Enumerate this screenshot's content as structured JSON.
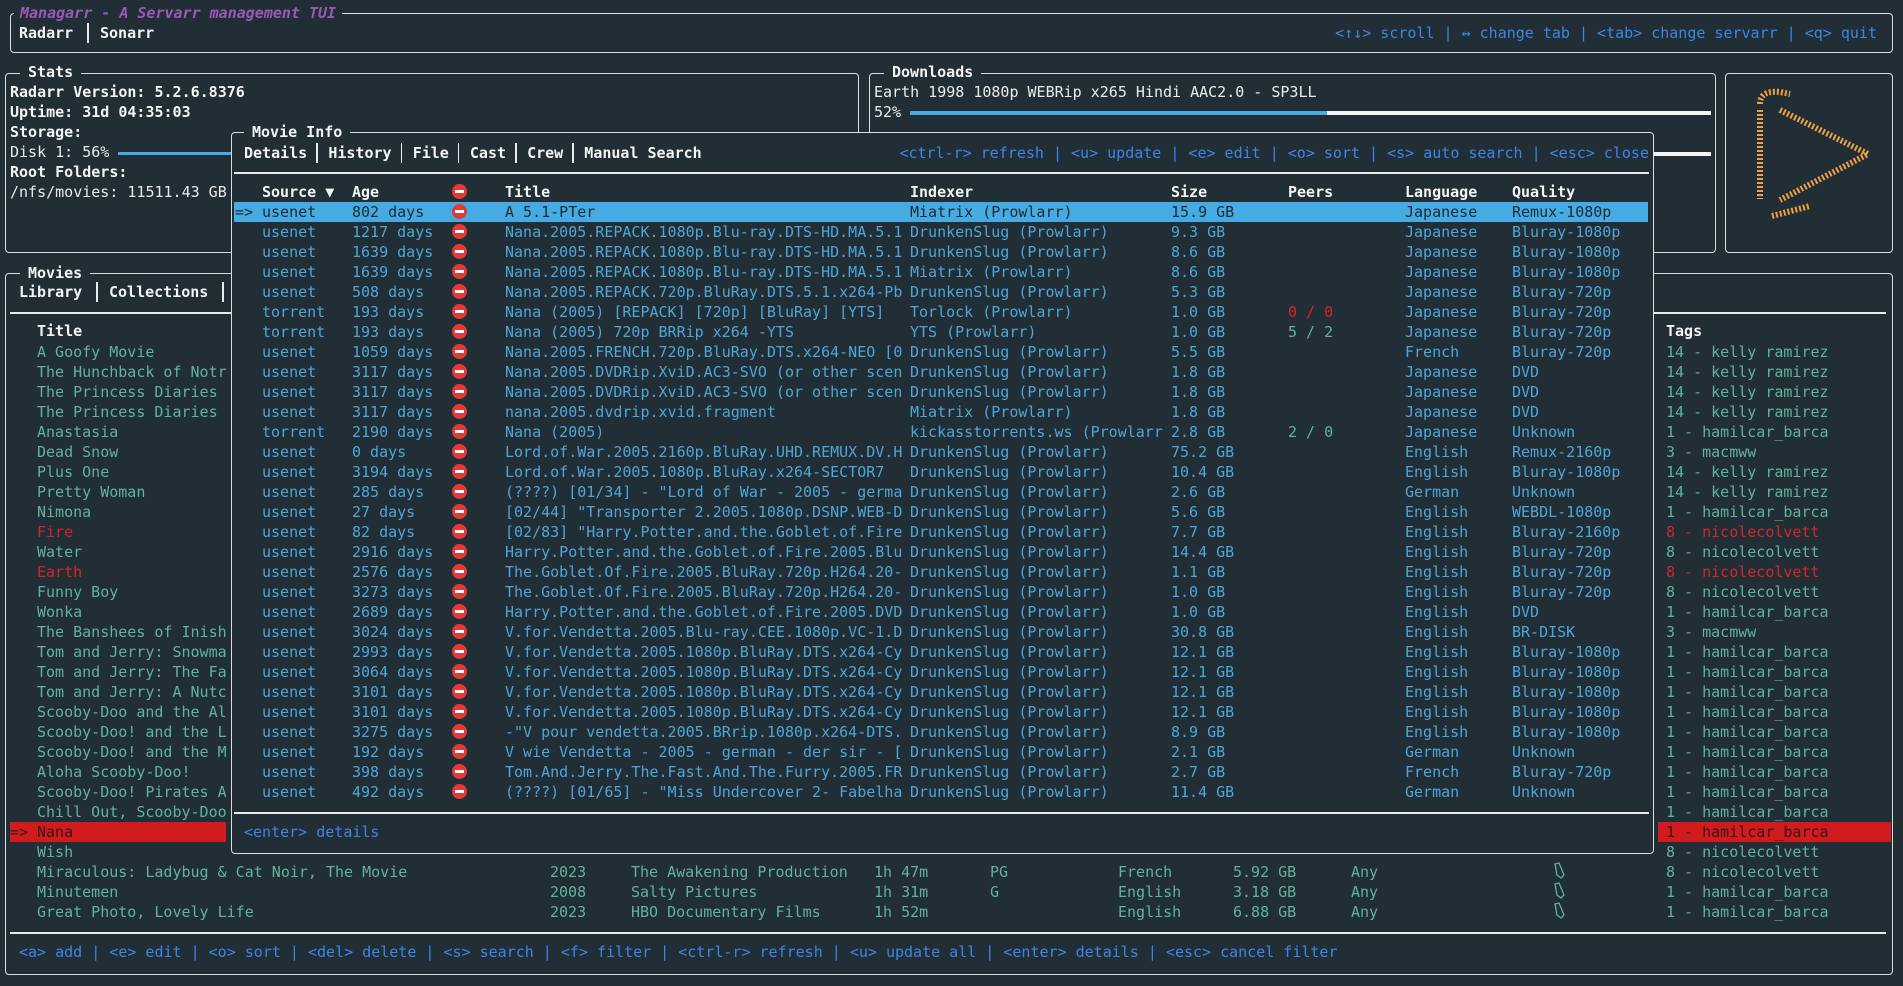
{
  "app": {
    "title": "Managarr - A Servarr management TUI",
    "servarr_tabs": [
      {
        "label": "Radarr",
        "active": true
      },
      {
        "label": "Sonarr",
        "active": false
      }
    ],
    "help": "<↑↓> scroll | ↔ change tab | <tab> change servarr | <q> quit"
  },
  "stats": {
    "title": "Stats",
    "version_label": "Radarr Version:  5.2.6.8376",
    "uptime_label": "Uptime: 31d 04:35:03",
    "storage_label": "Storage:",
    "disk_label": "Disk 1: 56%",
    "disk_percent": 56,
    "root_folders_label": "Root Folders:",
    "root_folder": "/nfs/movies: 11511.43 GB"
  },
  "downloads": {
    "title": "Downloads",
    "items": [
      {
        "name": "Earth 1998 1080p WEBRip x265 Hindi AAC2.0 - SP3LL",
        "percent_label": "52%",
        "percent": 52
      }
    ]
  },
  "logo": {
    "icon": "radarr-play-logo",
    "color": "#f0a043"
  },
  "movies": {
    "title": "Movies",
    "tabs": [
      {
        "label": "Library",
        "active": true
      },
      {
        "label": "Collections",
        "active": false
      }
    ],
    "headers": {
      "title": "Title",
      "tags": "Tags"
    },
    "rows": [
      {
        "title": "A Goofy Movie",
        "tags": "14 - kelly ramirez"
      },
      {
        "title": "The Hunchback of Notr",
        "tags": "14 - kelly ramirez"
      },
      {
        "title": "The Princess Diaries",
        "tags": "14 - kelly ramirez"
      },
      {
        "title": "The Princess Diaries",
        "tags": "14 - kelly ramirez"
      },
      {
        "title": "Anastasia",
        "tags": "1 - hamilcar_barca"
      },
      {
        "title": "Dead Snow",
        "tags": "3 - macmww"
      },
      {
        "title": "Plus One",
        "tags": "14 - kelly ramirez"
      },
      {
        "title": "Pretty Woman",
        "tags": "14 - kelly ramirez"
      },
      {
        "title": "Nimona",
        "tags": "1 - hamilcar_barca"
      },
      {
        "title": "Fire",
        "tags": "8 - nicolecolvett",
        "status": "missing"
      },
      {
        "title": "Water",
        "tags": "8 - nicolecolvett"
      },
      {
        "title": "Earth",
        "tags": "8 - nicolecolvett",
        "status": "missing"
      },
      {
        "title": "Funny Boy",
        "tags": "8 - nicolecolvett"
      },
      {
        "title": "Wonka",
        "tags": "1 - hamilcar_barca"
      },
      {
        "title": "The Banshees of Inish",
        "tags": "3 - macmww"
      },
      {
        "title": "Tom and Jerry: Snowma",
        "tags": "1 - hamilcar_barca"
      },
      {
        "title": "Tom and Jerry: The Fa",
        "tags": "1 - hamilcar_barca"
      },
      {
        "title": "Tom and Jerry: A Nutc",
        "tags": "1 - hamilcar_barca"
      },
      {
        "title": "Scooby-Doo and the Al",
        "tags": "1 - hamilcar_barca"
      },
      {
        "title": "Scooby-Doo! and the L",
        "tags": "1 - hamilcar_barca"
      },
      {
        "title": "Scooby-Doo! and the M",
        "tags": "1 - hamilcar_barca"
      },
      {
        "title": "Aloha Scooby-Doo!",
        "tags": "1 - hamilcar_barca"
      },
      {
        "title": "Scooby-Doo! Pirates A",
        "tags": "1 - hamilcar_barca"
      },
      {
        "title": "Chill Out, Scooby-Doo",
        "tags": "1 - hamilcar_barca"
      },
      {
        "title": "Nana",
        "tags": "1 - hamilcar_barca",
        "selected": true
      },
      {
        "title": "Wish",
        "tags": "8 - nicolecolvett"
      },
      {
        "title": "Miraculous: Ladybug & Cat Noir, The Movie",
        "year": "2023",
        "studio": "The Awakening Production",
        "runtime": "1h 47m",
        "rating": "PG",
        "language": "French",
        "size": "5.92 GB",
        "quality_profile": "Any",
        "monitored_icon": "bookmark-icon",
        "tags": "8 - nicolecolvett"
      },
      {
        "title": "Minutemen",
        "year": "2008",
        "studio": "Salty Pictures",
        "runtime": "1h 31m",
        "rating": "G",
        "language": "English",
        "size": "3.18 GB",
        "quality_profile": "Any",
        "monitored_icon": "bookmark-icon",
        "tags": "1 - hamilcar_barca"
      },
      {
        "title": "Great Photo, Lovely Life",
        "year": "2023",
        "studio": "HBO Documentary Films",
        "runtime": "1h 52m",
        "rating": "",
        "language": "English",
        "size": "6.88 GB",
        "quality_profile": "Any",
        "monitored_icon": "bookmark-icon",
        "tags": "1 - hamilcar_barca"
      }
    ],
    "help": "<a> add | <e> edit | <o> sort | <del> delete | <s> search | <f> filter | <ctrl-r> refresh | <u> update all | <enter> details | <esc> cancel filter"
  },
  "movie_info": {
    "title": "Movie Info",
    "tabs": [
      {
        "label": "Details"
      },
      {
        "label": "History"
      },
      {
        "label": "File"
      },
      {
        "label": "Cast"
      },
      {
        "label": "Crew"
      },
      {
        "label": "Manual Search",
        "active": true
      }
    ],
    "help": "<ctrl-r> refresh | <u> update | <e> edit | <o> sort | <s> auto search | <esc> close",
    "headers": {
      "source": "Source ▼",
      "age": "Age",
      "rejected_icon": "blocked-icon",
      "title": "Title",
      "indexer": "Indexer",
      "size": "Size",
      "peers": "Peers",
      "language": "Language",
      "quality": "Quality"
    },
    "selected_marker": "=>",
    "rows": [
      [
        "usenet",
        "802 days",
        "A 5.1-PTer",
        "Miatrix (Prowlarr)",
        "15.9 GB",
        "",
        "Japanese",
        "Remux-1080p"
      ],
      [
        "usenet",
        "1217 days",
        "Nana.2005.REPACK.1080p.Blu-ray.DTS-HD.MA.5.1",
        "DrunkenSlug (Prowlarr)",
        "9.3 GB",
        "",
        "Japanese",
        "Bluray-1080p"
      ],
      [
        "usenet",
        "1639 days",
        "Nana.2005.REPACK.1080p.Blu-ray.DTS-HD.MA.5.1",
        "DrunkenSlug (Prowlarr)",
        "8.6 GB",
        "",
        "Japanese",
        "Bluray-1080p"
      ],
      [
        "usenet",
        "1639 days",
        "Nana.2005.REPACK.1080p.Blu-ray.DTS-HD.MA.5.1",
        "Miatrix (Prowlarr)",
        "8.6 GB",
        "",
        "Japanese",
        "Bluray-1080p"
      ],
      [
        "usenet",
        "508 days",
        "Nana.2005.REPACK.720p.BluRay.DTS.5.1.x264-Pb",
        "DrunkenSlug (Prowlarr)",
        "5.3 GB",
        "",
        "Japanese",
        "Bluray-720p"
      ],
      [
        "torrent",
        "193 days",
        "Nana (2005) [REPACK] [720p] [BluRay] [YTS]",
        "Torlock (Prowlarr)",
        "1.0 GB",
        "0 / 0",
        "Japanese",
        "Bluray-720p"
      ],
      [
        "torrent",
        "193 days",
        "Nana (2005) 720p BRRip x264 -YTS",
        "YTS (Prowlarr)",
        "1.0 GB",
        "5 / 2",
        "Japanese",
        "Bluray-720p"
      ],
      [
        "usenet",
        "1059 days",
        "Nana.2005.FRENCH.720p.BluRay.DTS.x264-NEO [0",
        "DrunkenSlug (Prowlarr)",
        "5.5 GB",
        "",
        "French",
        "Bluray-720p"
      ],
      [
        "usenet",
        "3117 days",
        "Nana.2005.DVDRip.XviD.AC3-SVO (or other scen",
        "DrunkenSlug (Prowlarr)",
        "1.8 GB",
        "",
        "Japanese",
        "DVD"
      ],
      [
        "usenet",
        "3117 days",
        "Nana.2005.DVDRip.XviD.AC3-SVO (or other scen",
        "DrunkenSlug (Prowlarr)",
        "1.8 GB",
        "",
        "Japanese",
        "DVD"
      ],
      [
        "usenet",
        "3117 days",
        "nana.2005.dvdrip.xvid.fragment",
        "Miatrix (Prowlarr)",
        "1.8 GB",
        "",
        "Japanese",
        "DVD"
      ],
      [
        "torrent",
        "2190 days",
        "Nana (2005)",
        "kickasstorrents.ws (Prowlarr",
        "2.8 GB",
        "2 / 0",
        "Japanese",
        "Unknown"
      ],
      [
        "usenet",
        "0 days",
        "Lord.of.War.2005.2160p.BluRay.UHD.REMUX.DV.H",
        "DrunkenSlug (Prowlarr)",
        "75.2 GB",
        "",
        "English",
        "Remux-2160p"
      ],
      [
        "usenet",
        "3194 days",
        "Lord.of.War.2005.1080p.BluRay.x264-SECTOR7",
        "DrunkenSlug (Prowlarr)",
        "10.4 GB",
        "",
        "English",
        "Bluray-1080p"
      ],
      [
        "usenet",
        "285 days",
        "(????) [01/34] - \"Lord of War - 2005 - germa",
        "DrunkenSlug (Prowlarr)",
        "2.6 GB",
        "",
        "German",
        "Unknown"
      ],
      [
        "usenet",
        "27 days",
        "[02/44] \"Transporter 2.2005.1080p.DSNP.WEB-D",
        "DrunkenSlug (Prowlarr)",
        "5.6 GB",
        "",
        "English",
        "WEBDL-1080p"
      ],
      [
        "usenet",
        "82 days",
        "[02/83] \"Harry.Potter.and.the.Goblet.of.Fire",
        "DrunkenSlug (Prowlarr)",
        "7.7 GB",
        "",
        "English",
        "Bluray-2160p"
      ],
      [
        "usenet",
        "2916 days",
        "Harry.Potter.and.the.Goblet.of.Fire.2005.Blu",
        "DrunkenSlug (Prowlarr)",
        "14.4 GB",
        "",
        "English",
        "Bluray-720p"
      ],
      [
        "usenet",
        "2576 days",
        "The.Goblet.Of.Fire.2005.BluRay.720p.H264.20-",
        "DrunkenSlug (Prowlarr)",
        "1.1 GB",
        "",
        "English",
        "Bluray-720p"
      ],
      [
        "usenet",
        "3273 days",
        "The.Goblet.Of.Fire.2005.BluRay.720p.H264.20-",
        "DrunkenSlug (Prowlarr)",
        "1.0 GB",
        "",
        "English",
        "Bluray-720p"
      ],
      [
        "usenet",
        "2689 days",
        "Harry.Potter.and.the.Goblet.of.Fire.2005.DVD",
        "DrunkenSlug (Prowlarr)",
        "1.0 GB",
        "",
        "English",
        "DVD"
      ],
      [
        "usenet",
        "3024 days",
        "V.for.Vendetta.2005.Blu-ray.CEE.1080p.VC-1.D",
        "DrunkenSlug (Prowlarr)",
        "30.8 GB",
        "",
        "English",
        "BR-DISK"
      ],
      [
        "usenet",
        "2993 days",
        "V.for.Vendetta.2005.1080p.BluRay.DTS.x264-Cy",
        "DrunkenSlug (Prowlarr)",
        "12.1 GB",
        "",
        "English",
        "Bluray-1080p"
      ],
      [
        "usenet",
        "3064 days",
        "V.for.Vendetta.2005.1080p.BluRay.DTS.x264-Cy",
        "DrunkenSlug (Prowlarr)",
        "12.1 GB",
        "",
        "English",
        "Bluray-1080p"
      ],
      [
        "usenet",
        "3101 days",
        "V.for.Vendetta.2005.1080p.BluRay.DTS.x264-Cy",
        "DrunkenSlug (Prowlarr)",
        "12.1 GB",
        "",
        "English",
        "Bluray-1080p"
      ],
      [
        "usenet",
        "3101 days",
        "V.for.Vendetta.2005.1080p.BluRay.DTS.x264-Cy",
        "DrunkenSlug (Prowlarr)",
        "12.1 GB",
        "",
        "English",
        "Bluray-1080p"
      ],
      [
        "usenet",
        "3275 days",
        "-\"V pour vendetta.2005.BRrip.1080p.x264-DTS.",
        "DrunkenSlug (Prowlarr)",
        "8.9 GB",
        "",
        "English",
        "Bluray-1080p"
      ],
      [
        "usenet",
        "192 days",
        "V wie Vendetta - 2005 - german - der sir - [",
        "DrunkenSlug (Prowlarr)",
        "2.1 GB",
        "",
        "German",
        "Unknown"
      ],
      [
        "usenet",
        "398 days",
        "Tom.And.Jerry.The.Fast.And.The.Furry.2005.FR",
        "DrunkenSlug (Prowlarr)",
        "2.7 GB",
        "",
        "French",
        "Bluray-720p"
      ],
      [
        "usenet",
        "492 days",
        "(????) [01/65] - \"Miss Undercover 2- Fabelha",
        "DrunkenSlug (Prowlarr)",
        "11.4 GB",
        "",
        "German",
        "Unknown"
      ]
    ],
    "footer_help": "<enter> details"
  },
  "colors": {
    "background": "#222e35",
    "accent": "#f0a043",
    "help": "#3d86e6",
    "selected_row": "#46abe3",
    "error": "#d3262a",
    "library_text": "#5fb3a0",
    "title": "#9b59b6"
  }
}
